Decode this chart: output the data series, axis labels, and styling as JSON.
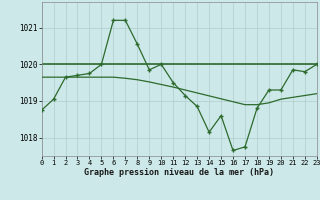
{
  "hours": [
    0,
    1,
    2,
    3,
    4,
    5,
    6,
    7,
    8,
    9,
    10,
    11,
    12,
    13,
    14,
    15,
    16,
    17,
    18,
    19,
    20,
    21,
    22,
    23
  ],
  "main_line": [
    1018.75,
    1019.05,
    1019.65,
    1019.7,
    1019.75,
    1020.0,
    1021.2,
    1021.2,
    1020.55,
    1019.85,
    1020.0,
    1019.5,
    1019.15,
    1018.85,
    1018.15,
    1018.6,
    1017.65,
    1017.75,
    1018.8,
    1019.3,
    1019.3,
    1019.85,
    1019.8,
    1020.0
  ],
  "smooth_line": [
    1019.65,
    1019.65,
    1019.65,
    1019.65,
    1019.65,
    1019.65,
    1019.65,
    1019.62,
    1019.58,
    1019.52,
    1019.45,
    1019.38,
    1019.3,
    1019.22,
    1019.14,
    1019.06,
    1018.98,
    1018.9,
    1018.9,
    1018.95,
    1019.05,
    1019.1,
    1019.15,
    1019.2
  ],
  "ref_line_value": 1020.0,
  "line_color": "#2d6a2d",
  "bg_color": "#cce8e8",
  "grid_color": "#b0cccc",
  "xlabel": "Graphe pression niveau de la mer (hPa)",
  "ylim": [
    1017.5,
    1021.7
  ],
  "yticks": [
    1018,
    1019,
    1020,
    1021
  ],
  "xticks": [
    0,
    1,
    2,
    3,
    4,
    5,
    6,
    7,
    8,
    9,
    10,
    11,
    12,
    13,
    14,
    15,
    16,
    17,
    18,
    19,
    20,
    21,
    22,
    23
  ]
}
